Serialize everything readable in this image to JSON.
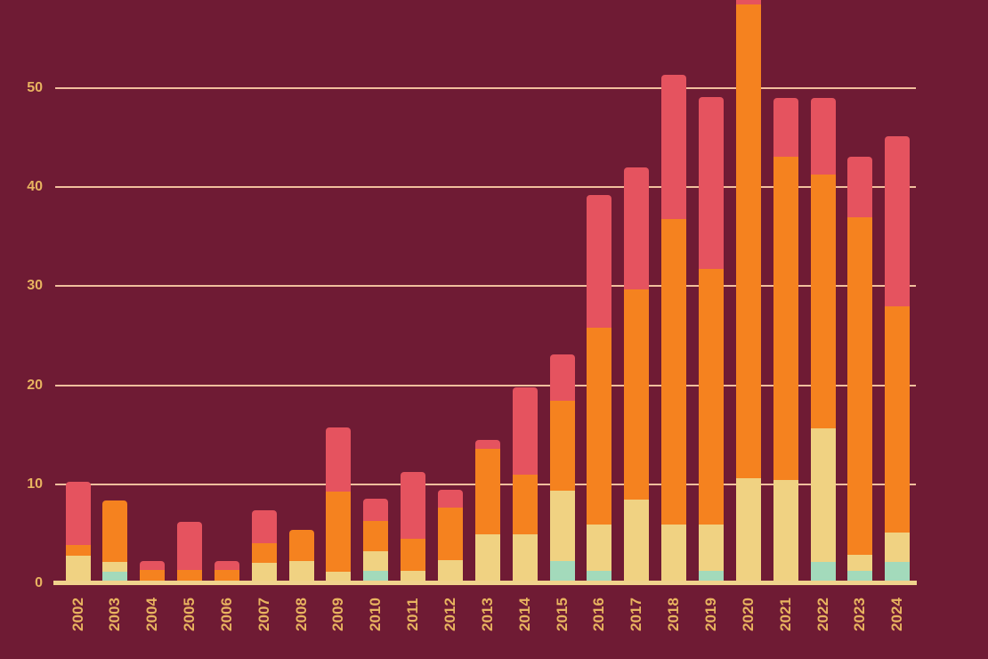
{
  "chart_data": {
    "type": "bar",
    "stacked": true,
    "title": "",
    "xlabel": "",
    "ylabel": "",
    "grid": true,
    "legend": false,
    "categories": [
      "2002",
      "2003",
      "2004",
      "2005",
      "2006",
      "2007",
      "2008",
      "2009",
      "2010",
      "2011",
      "2012",
      "2013",
      "2014",
      "2015",
      "2016",
      "2017",
      "2018",
      "2019",
      "2020",
      "2021",
      "2022",
      "2023",
      "2024"
    ],
    "series": [
      {
        "name": "teal",
        "color": "#A3DABB",
        "values": [
          0,
          0.9,
          0,
          0,
          0,
          0,
          0,
          0,
          1.0,
          0,
          0,
          0,
          0,
          2.0,
          1.0,
          0,
          0,
          1.0,
          0,
          0,
          1.9,
          1.0,
          1.9
        ]
      },
      {
        "name": "cream",
        "color": "#F0D282",
        "values": [
          2.5,
          1.0,
          0,
          0,
          0,
          1.8,
          2.0,
          0.9,
          2.0,
          1.0,
          2.1,
          4.7,
          4.7,
          7.1,
          4.7,
          8.2,
          5.7,
          4.7,
          10.3,
          10.2,
          13.5,
          1.6,
          3.0
        ]
      },
      {
        "name": "orange",
        "color": "#F5821F",
        "values": [
          1.1,
          6.2,
          1.1,
          1.1,
          1.1,
          2.0,
          3.1,
          8.1,
          3.0,
          3.2,
          5.3,
          8.6,
          6.0,
          9.1,
          19.8,
          21.2,
          30.8,
          25.8,
          47.9,
          32.6,
          25.6,
          34.1,
          22.8
        ]
      },
      {
        "name": "pink",
        "color": "#E5535F",
        "values": [
          6.4,
          0,
          0.9,
          4.8,
          0.9,
          3.3,
          0,
          6.5,
          2.3,
          6.8,
          1.8,
          0.9,
          8.8,
          4.6,
          13.4,
          12.3,
          14.6,
          17.3,
          1.3,
          5.9,
          7.7,
          6.1,
          17.2
        ]
      }
    ],
    "totals": [
      10.0,
      8.1,
      2.0,
      5.9,
      2.0,
      7.1,
      5.1,
      15.5,
      8.3,
      11.0,
      9.2,
      14.2,
      19.5,
      22.8,
      38.9,
      41.7,
      51.1,
      48.8,
      59.5,
      48.7,
      48.7,
      42.8,
      44.9
    ],
    "y_ticks": [
      0,
      10,
      20,
      30,
      40,
      50
    ],
    "ylim": [
      0,
      58.8
    ]
  },
  "colors": {
    "background": "#6F1B34",
    "gridline": "#F1BF9D",
    "axis_line": "#F0D28C",
    "tick_label": "#E8B360"
  }
}
